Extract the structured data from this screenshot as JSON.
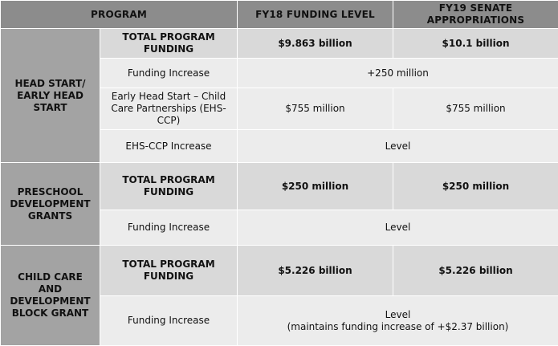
{
  "header": {
    "program": "PROGRAM",
    "fy18": "FY18 FUNDING LEVEL",
    "fy19": "FY19 SENATE APPROPRIATIONS"
  },
  "sections": [
    {
      "program": "HEAD START/ EARLY HEAD START",
      "rows": [
        {
          "label": "TOTAL PROGRAM FUNDING",
          "fy18": "$9.863 billion",
          "fy19": "$10.1 billion"
        },
        {
          "label": "Funding Increase",
          "combined": "+250 million"
        },
        {
          "label": "Early Head Start – Child Care Partnerships (EHS-CCP)",
          "fy18": "$755 million",
          "fy19": "$755 million"
        },
        {
          "label": "EHS-CCP Increase",
          "combined": "Level"
        }
      ]
    },
    {
      "program": "PRESCHOOL DEVELOPMENT GRANTS",
      "rows": [
        {
          "label": "TOTAL PROGRAM FUNDING",
          "fy18": "$250 million",
          "fy19": "$250 million"
        },
        {
          "label": "Funding Increase",
          "combined": "Level"
        }
      ]
    },
    {
      "program": "CHILD CARE AND DEVELOPMENT BLOCK GRANT",
      "rows": [
        {
          "label": "TOTAL PROGRAM FUNDING",
          "fy18": "$5.226 billion",
          "fy19": "$5.226 billion"
        },
        {
          "label": "Funding Increase",
          "combined_line1": "Level",
          "combined_line2": "(maintains funding increase of +$2.37 billion)"
        }
      ]
    }
  ]
}
